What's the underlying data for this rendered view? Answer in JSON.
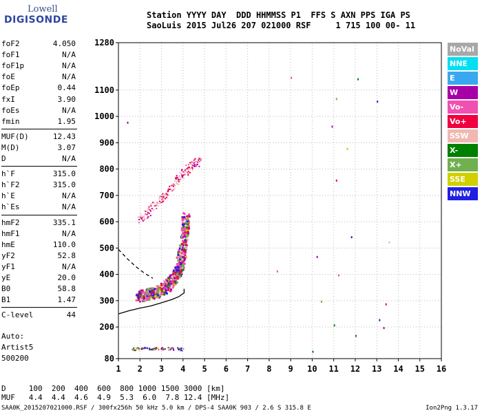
{
  "logo": {
    "line1": "Lowell",
    "line2": "DIGISONDE"
  },
  "header": {
    "line1": "Station YYYY DAY  DDD HHMMSS P1  FFS S AXN PPS IGA PS",
    "line2": "SaoLuis 2015 Jul26 207 021000 RSF     1 715 100 00- 11"
  },
  "params": {
    "group1": [
      {
        "label": "foF2",
        "value": "4.050"
      },
      {
        "label": "foF1",
        "value": "N/A"
      },
      {
        "label": "foF1p",
        "value": "N/A"
      },
      {
        "label": "foE",
        "value": "N/A"
      },
      {
        "label": "foEp",
        "value": "0.44"
      },
      {
        "label": "fxI",
        "value": "3.90"
      },
      {
        "label": "foEs",
        "value": "N/A"
      },
      {
        "label": "fmin",
        "value": "1.95"
      }
    ],
    "group2": [
      {
        "label": "MUF(D)",
        "value": "12.43"
      },
      {
        "label": "M(D)",
        "value": "3.07"
      },
      {
        "label": "D",
        "value": "N/A"
      }
    ],
    "group3": [
      {
        "label": "h`F",
        "value": "315.0"
      },
      {
        "label": "h`F2",
        "value": "315.0"
      },
      {
        "label": "h`E",
        "value": "N/A"
      },
      {
        "label": "h`Es",
        "value": "N/A"
      }
    ],
    "group4": [
      {
        "label": "hmF2",
        "value": "335.1"
      },
      {
        "label": "hmF1",
        "value": "N/A"
      },
      {
        "label": "hmE",
        "value": "110.0"
      },
      {
        "label": "yF2",
        "value": "52.8"
      },
      {
        "label": "yF1",
        "value": "N/A"
      },
      {
        "label": "yE",
        "value": "20.0"
      },
      {
        "label": "B0",
        "value": "58.8"
      },
      {
        "label": "B1",
        "value": "1.47"
      }
    ],
    "group5": [
      {
        "label": "C-level",
        "value": "44"
      }
    ]
  },
  "auto": {
    "line1": "Auto:",
    "line2": "Artist5",
    "line3": "500200"
  },
  "muf_table": {
    "line1": "D     100  200  400  600  800 1000 1500 3000 [km]",
    "line2": "MUF   4.4  4.4  4.6  4.9  5.3  6.0  7.8 12.4 [MHz]"
  },
  "footer": "SAA0K_2015207021000.RSF / 300fx256h 50 kHz 5.0 km / DPS-4 SAA0K 903 / 2.6 S 315.8 E",
  "version": "Ion2Png 1.3.17",
  "legend": [
    {
      "label": "NoVal",
      "color": "#a8a8a8"
    },
    {
      "label": "NNE",
      "color": "#00e0f0"
    },
    {
      "label": "E",
      "color": "#3aa8f0"
    },
    {
      "label": "W",
      "color": "#a800a8"
    },
    {
      "label": "Vo-",
      "color": "#f050b0"
    },
    {
      "label": "Vo+",
      "color": "#f00040"
    },
    {
      "label": "SSW",
      "color": "#f0b8b0"
    },
    {
      "label": "X-",
      "color": "#008000"
    },
    {
      "label": "X+",
      "color": "#70b050"
    },
    {
      "label": "SSE",
      "color": "#d0d000"
    },
    {
      "label": "NNW",
      "color": "#2020e0"
    }
  ],
  "chart_data": {
    "type": "scatter",
    "title": "",
    "xlabel": "",
    "ylabel": "",
    "xlim": [
      1,
      16
    ],
    "ylim": [
      80,
      1280
    ],
    "x_ticks": [
      1,
      2,
      3,
      4,
      5,
      6,
      7,
      8,
      9,
      10,
      11,
      12,
      13,
      14,
      15,
      16
    ],
    "y_ticks": [
      80,
      200,
      300,
      400,
      500,
      600,
      700,
      800,
      900,
      1000,
      1100,
      1280
    ],
    "grid": true,
    "legend_position": "right",
    "profile_solid": [
      [
        1.0,
        250
      ],
      [
        1.5,
        262
      ],
      [
        2.0,
        272
      ],
      [
        2.5,
        280
      ],
      [
        3.0,
        292
      ],
      [
        3.5,
        305
      ],
      [
        3.8,
        315
      ],
      [
        4.05,
        330
      ],
      [
        4.05,
        345
      ]
    ],
    "profile_dashed": [
      [
        1.0,
        495
      ],
      [
        1.4,
        460
      ],
      [
        1.8,
        430
      ],
      [
        2.2,
        405
      ],
      [
        2.6,
        385
      ]
    ],
    "traces": [
      {
        "name": "F-region O trace",
        "points": [
          [
            1.9,
            320
          ],
          [
            2.1,
            322
          ],
          [
            2.4,
            328
          ],
          [
            2.7,
            335
          ],
          [
            3.0,
            345
          ],
          [
            3.2,
            358
          ],
          [
            3.4,
            372
          ],
          [
            3.6,
            392
          ],
          [
            3.75,
            420
          ],
          [
            3.85,
            455
          ],
          [
            3.95,
            500
          ],
          [
            4.05,
            560
          ],
          [
            4.1,
            620
          ]
        ]
      },
      {
        "name": "F-region second-hop trace",
        "points": [
          [
            1.9,
            610
          ],
          [
            2.2,
            630
          ],
          [
            2.6,
            660
          ],
          [
            3.0,
            690
          ],
          [
            3.3,
            720
          ],
          [
            3.6,
            750
          ],
          [
            3.9,
            780
          ],
          [
            4.2,
            800
          ],
          [
            4.5,
            820
          ],
          [
            4.8,
            840
          ]
        ]
      },
      {
        "name": "low-height band",
        "points": [
          [
            1.6,
            118
          ],
          [
            2.0,
            120
          ],
          [
            2.5,
            121
          ],
          [
            3.0,
            120
          ],
          [
            3.5,
            119
          ],
          [
            4.0,
            118
          ]
        ]
      },
      {
        "name": "scattered echoes",
        "points": [
          [
            8.35,
            415
          ],
          [
            9.0,
            1150
          ],
          [
            10.2,
            470
          ],
          [
            10.4,
            300
          ],
          [
            10.9,
            965
          ],
          [
            11.1,
            1070
          ],
          [
            11.6,
            880
          ],
          [
            11.8,
            545
          ],
          [
            12.1,
            1145
          ],
          [
            13.0,
            1060
          ],
          [
            13.1,
            230
          ],
          [
            13.4,
            290
          ],
          [
            13.55,
            525
          ],
          [
            13.3,
            200
          ],
          [
            12.0,
            170
          ],
          [
            11.0,
            210
          ],
          [
            10.0,
            110
          ],
          [
            1.4,
            980
          ],
          [
            11.2,
            400
          ],
          [
            11.1,
            760
          ]
        ]
      }
    ]
  }
}
